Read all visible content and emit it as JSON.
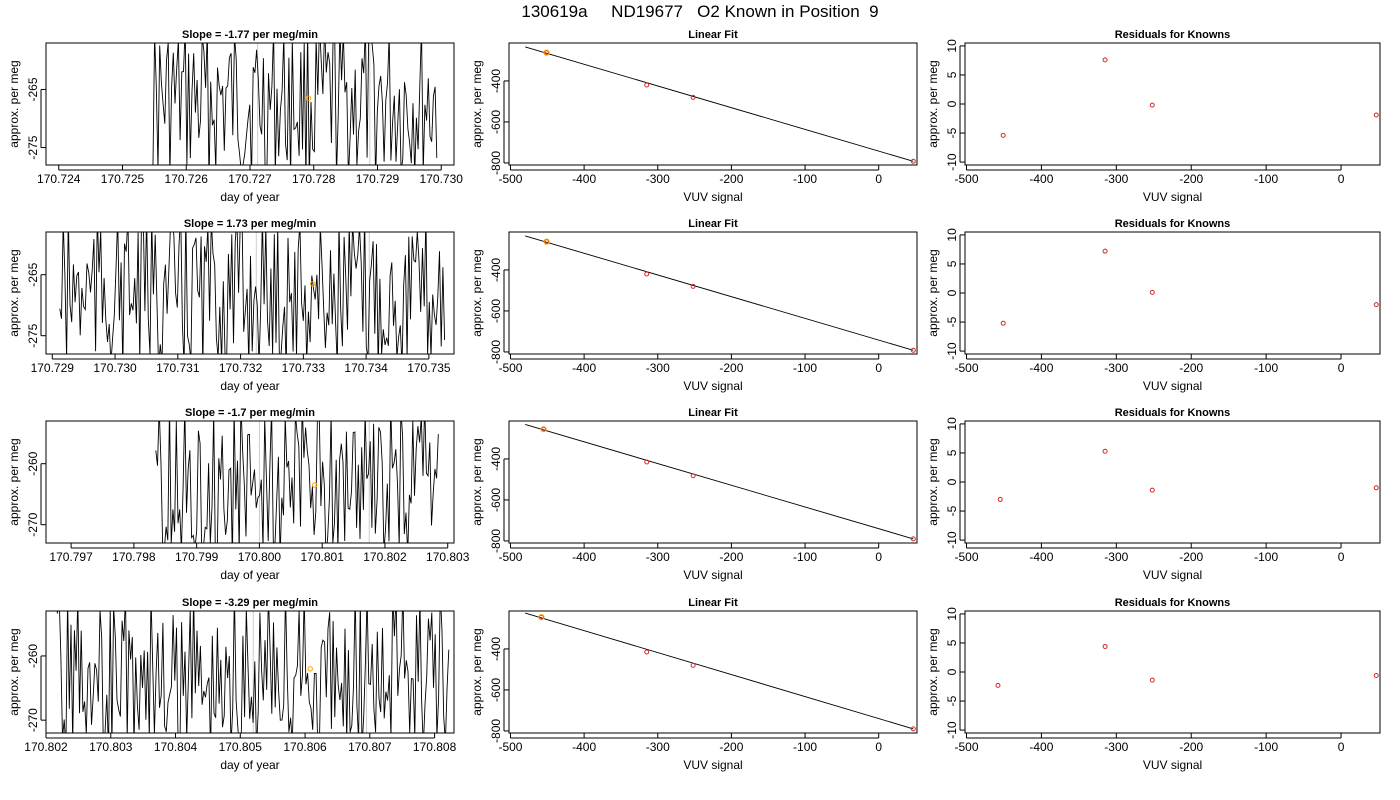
{
  "figure_title": "130619a     ND19677   O2 Known in Position  9",
  "colors": {
    "trace": "#000000",
    "highlight": "#FFA500",
    "knowns": "#D62728",
    "fit_line": "#000000"
  },
  "chart_data": [
    {
      "type": "line",
      "row": 1,
      "panel": "time-series",
      "title": "Slope =  -1.77  per meg/min",
      "xlabel": "day of year",
      "ylabel": "approx. per meg",
      "xlim": [
        170.7238,
        170.7302
      ],
      "ylim": [
        -278,
        -257
      ],
      "x_ticks": [
        "170.724",
        "170.725",
        "170.726",
        "170.727",
        "170.728",
        "170.729",
        "170.730"
      ],
      "y_ticks": [
        "-265",
        "-275"
      ],
      "trace_start": 170.72545,
      "trace_end": 170.72993,
      "highlight_point": {
        "x": 170.72792,
        "y": -266.5
      },
      "marker_lines_x": [
        170.72712,
        170.72888
      ]
    },
    {
      "type": "scatter",
      "row": 1,
      "panel": "linear-fit",
      "title": "Linear Fit",
      "xlabel": "VUV signal",
      "ylabel": "approx. per meg",
      "xlim": [
        -502,
        52
      ],
      "ylim": [
        -810,
        -215
      ],
      "x_ticks": [
        "-500",
        "-400",
        "-300",
        "-200",
        "-100",
        "0"
      ],
      "y_ticks": [
        "-400",
        "-600",
        "-800"
      ],
      "points": [
        [
          -451,
          -262
        ],
        [
          -315,
          -420
        ],
        [
          -252,
          -480
        ],
        [
          47,
          -792
        ]
      ],
      "fit_line": [
        [
          -480,
          -234
        ],
        [
          47,
          -792
        ]
      ],
      "highlight_index": 0
    },
    {
      "type": "scatter",
      "row": 1,
      "panel": "residuals",
      "title": "Residuals for Knowns",
      "xlabel": "VUV signal",
      "ylabel": "approx. per meg",
      "xlim": [
        -502,
        52
      ],
      "ylim": [
        -10.5,
        10.5
      ],
      "x_ticks": [
        "-500",
        "-400",
        "-300",
        "-200",
        "-100",
        "0"
      ],
      "y_ticks": [
        "10",
        "5",
        "0",
        "-5",
        "-10"
      ],
      "points": [
        [
          -451,
          -5.4
        ],
        [
          -315,
          7.6
        ],
        [
          -252,
          -0.2
        ],
        [
          47,
          -1.9
        ]
      ]
    },
    {
      "type": "line",
      "row": 2,
      "panel": "time-series",
      "title": "Slope =  1.73  per meg/min",
      "xlabel": "day of year",
      "ylabel": "approx. per meg",
      "xlim": [
        170.7289,
        170.7354
      ],
      "ylim": [
        -278,
        -258
      ],
      "x_ticks": [
        "170.729",
        "170.730",
        "170.731",
        "170.732",
        "170.733",
        "170.734",
        "170.735"
      ],
      "y_ticks": [
        "-265",
        "-275"
      ],
      "trace_start": 170.72912,
      "trace_end": 170.73525,
      "highlight_point": {
        "x": 170.73315,
        "y": -266.5
      },
      "marker_lines_x": [
        170.73225,
        170.73405
      ]
    },
    {
      "type": "scatter",
      "row": 2,
      "panel": "linear-fit",
      "title": "Linear Fit",
      "xlabel": "VUV signal",
      "ylabel": "approx. per meg",
      "xlim": [
        -502,
        52
      ],
      "ylim": [
        -810,
        -215
      ],
      "x_ticks": [
        "-500",
        "-400",
        "-300",
        "-200",
        "-100",
        "0"
      ],
      "y_ticks": [
        "-400",
        "-600",
        "-800"
      ],
      "points": [
        [
          -451,
          -262
        ],
        [
          -315,
          -420
        ],
        [
          -252,
          -480
        ],
        [
          47,
          -792
        ]
      ],
      "fit_line": [
        [
          -480,
          -234
        ],
        [
          47,
          -792
        ]
      ],
      "highlight_index": 0
    },
    {
      "type": "scatter",
      "row": 2,
      "panel": "residuals",
      "title": "Residuals for Knowns",
      "xlabel": "VUV signal",
      "ylabel": "approx. per meg",
      "xlim": [
        -502,
        52
      ],
      "ylim": [
        -10.5,
        10.5
      ],
      "x_ticks": [
        "-500",
        "-400",
        "-300",
        "-200",
        "-100",
        "0"
      ],
      "y_ticks": [
        "10",
        "5",
        "0",
        "-5",
        "-10"
      ],
      "points": [
        [
          -451,
          -5.2
        ],
        [
          -315,
          7.2
        ],
        [
          -252,
          0.1
        ],
        [
          47,
          -2.0
        ]
      ]
    },
    {
      "type": "line",
      "row": 3,
      "panel": "time-series",
      "title": "Slope =  -1.7  per meg/min",
      "xlabel": "day of year",
      "ylabel": "approx. per meg",
      "xlim": [
        170.7966,
        170.8031
      ],
      "ylim": [
        -273,
        -253
      ],
      "x_ticks": [
        "170.797",
        "170.798",
        "170.799",
        "170.800",
        "170.801",
        "170.802",
        "170.803"
      ],
      "y_ticks": [
        "-260",
        "-270"
      ],
      "trace_start": 170.79835,
      "trace_end": 170.80285,
      "highlight_point": {
        "x": 170.80088,
        "y": -263.5
      },
      "marker_lines_x": [
        170.8,
        170.80175
      ]
    },
    {
      "type": "scatter",
      "row": 3,
      "panel": "linear-fit",
      "title": "Linear Fit",
      "xlabel": "VUV signal",
      "ylabel": "approx. per meg",
      "xlim": [
        -502,
        52
      ],
      "ylim": [
        -810,
        -215
      ],
      "x_ticks": [
        "-500",
        "-400",
        "-300",
        "-200",
        "-100",
        "0"
      ],
      "y_ticks": [
        "-400",
        "-600",
        "-800"
      ],
      "points": [
        [
          -455,
          -255
        ],
        [
          -315,
          -415
        ],
        [
          -252,
          -482
        ],
        [
          47,
          -790
        ]
      ],
      "fit_line": [
        [
          -480,
          -232
        ],
        [
          47,
          -790
        ]
      ],
      "highlight_index": 0
    },
    {
      "type": "scatter",
      "row": 3,
      "panel": "residuals",
      "title": "Residuals for Knowns",
      "xlabel": "VUV signal",
      "ylabel": "approx. per meg",
      "xlim": [
        -502,
        52
      ],
      "ylim": [
        -10.5,
        10.5
      ],
      "x_ticks": [
        "-500",
        "-400",
        "-300",
        "-200",
        "-100",
        "0"
      ],
      "y_ticks": [
        "10",
        "5",
        "0",
        "-5",
        "-10"
      ],
      "points": [
        [
          -455,
          -3.0
        ],
        [
          -315,
          5.3
        ],
        [
          -252,
          -1.4
        ],
        [
          47,
          -1.0
        ]
      ]
    },
    {
      "type": "line",
      "row": 4,
      "panel": "time-series",
      "title": "Slope =  -3.29  per meg/min",
      "xlabel": "day of year",
      "ylabel": "approx. per meg",
      "xlim": [
        170.802,
        170.8083
      ],
      "ylim": [
        -272,
        -253
      ],
      "x_ticks": [
        "170.802",
        "170.803",
        "170.804",
        "170.805",
        "170.806",
        "170.807",
        "170.808"
      ],
      "y_ticks": [
        "-260",
        "-270"
      ],
      "trace_start": 170.80215,
      "trace_end": 170.80822,
      "highlight_point": {
        "x": 170.80608,
        "y": -262
      },
      "marker_lines_x": [
        170.8052,
        170.80695
      ]
    },
    {
      "type": "scatter",
      "row": 4,
      "panel": "linear-fit",
      "title": "Linear Fit",
      "xlabel": "VUV signal",
      "ylabel": "approx. per meg",
      "xlim": [
        -502,
        52
      ],
      "ylim": [
        -810,
        -215
      ],
      "x_ticks": [
        "-500",
        "-400",
        "-300",
        "-200",
        "-100",
        "0"
      ],
      "y_ticks": [
        "-400",
        "-600",
        "-800"
      ],
      "points": [
        [
          -458,
          -245
        ],
        [
          -315,
          -415
        ],
        [
          -252,
          -480
        ],
        [
          47,
          -790
        ]
      ],
      "fit_line": [
        [
          -480,
          -225
        ],
        [
          47,
          -790
        ]
      ],
      "highlight_index": 0
    },
    {
      "type": "scatter",
      "row": 4,
      "panel": "residuals",
      "title": "Residuals for Knowns",
      "xlabel": "VUV signal",
      "ylabel": "approx. per meg",
      "xlim": [
        -502,
        52
      ],
      "ylim": [
        -10.5,
        10.5
      ],
      "x_ticks": [
        "-500",
        "-400",
        "-300",
        "-200",
        "-100",
        "0"
      ],
      "y_ticks": [
        "10",
        "5",
        "0",
        "-5",
        "-10"
      ],
      "points": [
        [
          -458,
          -2.3
        ],
        [
          -315,
          4.4
        ],
        [
          -252,
          -1.4
        ],
        [
          47,
          -0.6
        ]
      ]
    }
  ]
}
